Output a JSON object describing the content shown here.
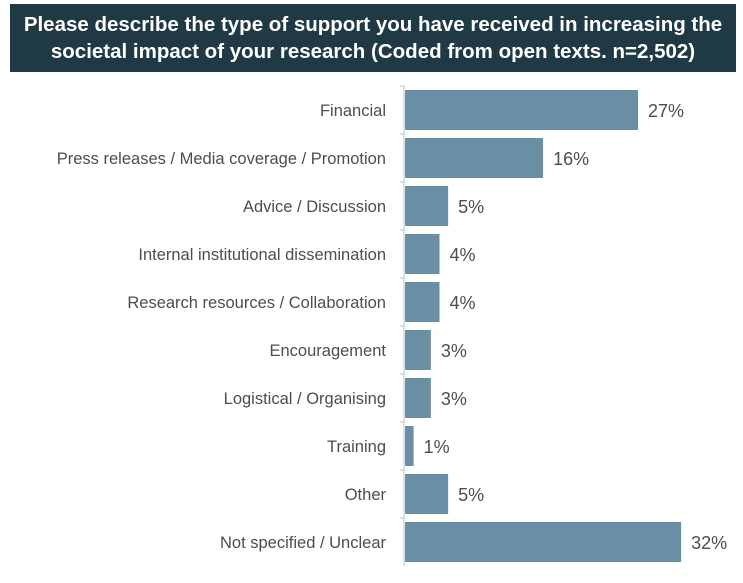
{
  "colors": {
    "title_bg": "#1f3a44",
    "bar": "#6a8ea4",
    "axis": "#bfbfbf",
    "text": "#4d4d4d"
  },
  "chart_data": {
    "type": "bar",
    "orientation": "horizontal",
    "title": "Please describe the type of support you have received in increasing the societal impact of your research (Coded from open texts.  n=2,502)",
    "categories": [
      "Financial",
      "Press releases / Media coverage / Promotion",
      "Advice / Discussion",
      "Internal institutional dissemination",
      "Research resources / Collaboration",
      "Encouragement",
      "Logistical / Organising",
      "Training",
      "Other",
      "Not specified / Unclear"
    ],
    "values": [
      27,
      16,
      5,
      4,
      4,
      3,
      3,
      1,
      5,
      32
    ],
    "value_labels": [
      "27%",
      "16%",
      "5%",
      "4%",
      "4%",
      "3%",
      "3%",
      "1%",
      "5%",
      "32%"
    ],
    "unit": "%",
    "xlim": [
      0,
      35
    ],
    "grid": false,
    "legend": "none"
  }
}
